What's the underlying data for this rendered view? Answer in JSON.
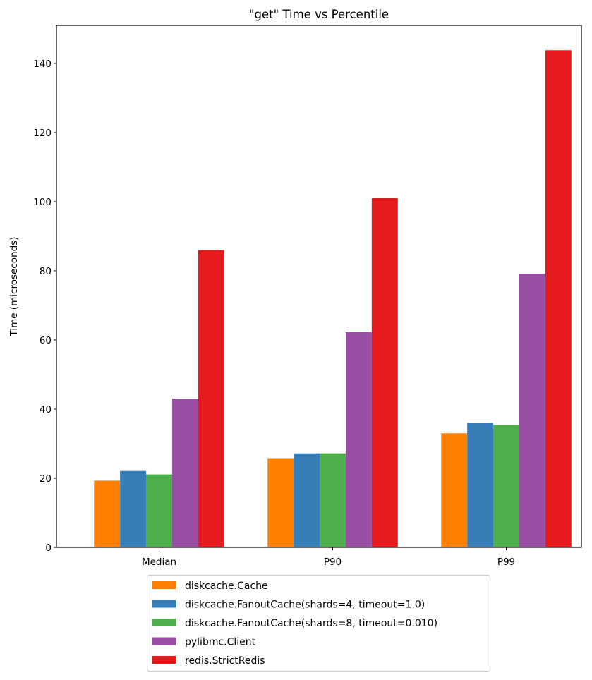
{
  "chart_data": {
    "type": "bar",
    "title": "\"get\" Time vs Percentile",
    "xlabel": "",
    "ylabel": "Time (microseconds)",
    "ylim": [
      0,
      151
    ],
    "yticks": [
      0,
      20,
      40,
      60,
      80,
      100,
      120,
      140
    ],
    "ytick_labels": [
      "0",
      "20",
      "40",
      "60",
      "80",
      "100",
      "120",
      "140"
    ],
    "categories": [
      "Median",
      "P90",
      "P99"
    ],
    "grid": false,
    "legend_position": "bottom-center, below plot",
    "series": [
      {
        "name": "diskcache.Cache",
        "color": "#ff7f00",
        "values": [
          19.3,
          25.8,
          33.0
        ]
      },
      {
        "name": "diskcache.FanoutCache(shards=4, timeout=1.0)",
        "color": "#377eb8",
        "values": [
          22.1,
          27.2,
          36.0
        ]
      },
      {
        "name": "diskcache.FanoutCache(shards=8, timeout=0.010)",
        "color": "#4daf4a",
        "values": [
          21.1,
          27.2,
          35.4
        ]
      },
      {
        "name": "pylibmc.Client",
        "color": "#984ea3",
        "values": [
          43.0,
          62.3,
          79.1
        ]
      },
      {
        "name": "redis.StrictRedis",
        "color": "#e41a1c",
        "values": [
          86.0,
          101.1,
          143.8
        ]
      }
    ]
  }
}
